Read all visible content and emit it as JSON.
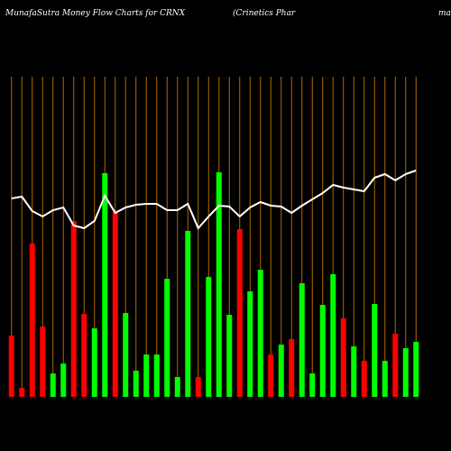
{
  "chart_data": {
    "type": "bar",
    "title": "MunafaSutra  Money Flow  Charts for CRNX",
    "subtitle": "(Crinetics Phar",
    "subtitle_right": "ma",
    "background": "#000000",
    "grid_color": "#b36b00",
    "line_color": "#ffffff",
    "values": [
      68,
      10,
      170,
      78,
      26,
      37,
      195,
      92,
      76,
      248,
      205,
      93,
      29,
      47,
      47,
      131,
      22,
      184,
      22,
      133,
      249,
      91,
      186,
      117,
      141,
      47,
      58,
      64,
      126,
      26,
      102,
      136,
      87,
      56,
      40,
      103,
      40,
      70,
      54,
      61
    ],
    "colors": [
      "#ff0000",
      "#ff0000",
      "#ff0000",
      "#ff0000",
      "#00ff00",
      "#00ff00",
      "#ff0000",
      "#ff0000",
      "#00ff00",
      "#00ff00",
      "#ff0000",
      "#00ff00",
      "#00ff00",
      "#00ff00",
      "#00ff00",
      "#00ff00",
      "#00ff00",
      "#00ff00",
      "#ff0000",
      "#00ff00",
      "#00ff00",
      "#00ff00",
      "#ff0000",
      "#00ff00",
      "#00ff00",
      "#ff0000",
      "#00ff00",
      "#ff0000",
      "#00ff00",
      "#00ff00",
      "#00ff00",
      "#00ff00",
      "#ff0000",
      "#00ff00",
      "#ff0000",
      "#00ff00",
      "#00ff00",
      "#ff0000",
      "#00ff00",
      "#00ff00"
    ],
    "line_values": [
      220,
      222,
      206,
      200,
      207,
      210,
      190,
      187,
      195,
      223,
      204,
      210,
      213,
      214,
      214,
      207,
      207,
      214,
      187,
      200,
      212,
      211,
      200,
      210,
      216,
      212,
      211,
      204,
      212,
      219,
      226,
      235,
      232,
      230,
      228,
      243,
      247,
      240,
      247,
      251
    ],
    "ylim": [
      0,
      360
    ]
  }
}
